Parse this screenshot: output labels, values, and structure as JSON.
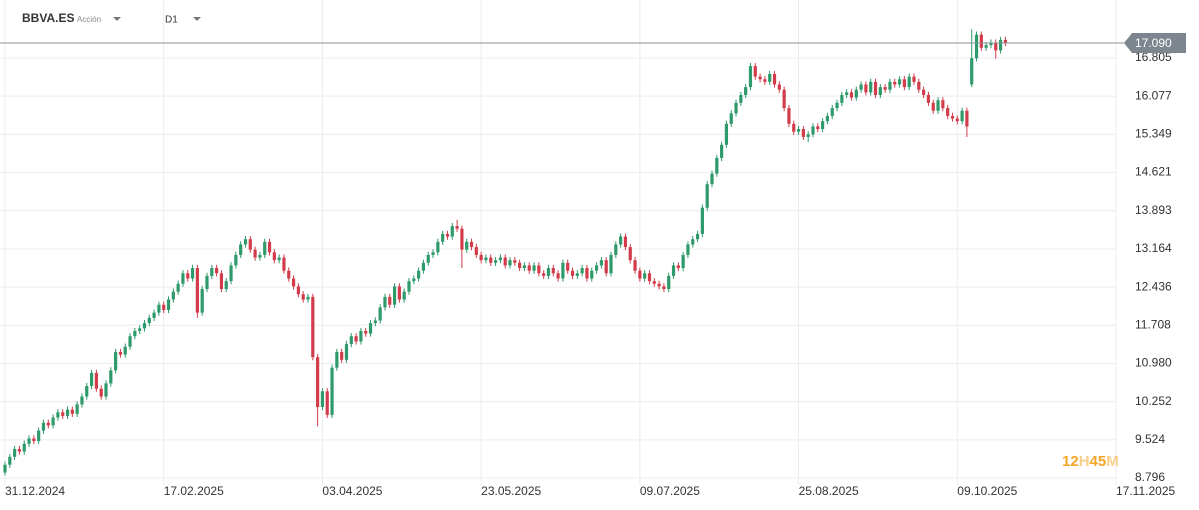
{
  "header": {
    "symbol": "BBVA.ES",
    "kind": "Acción",
    "timeframe": "D1"
  },
  "chart_data": {
    "type": "candlestick",
    "up_color": "#2e9a6a",
    "down_color": "#d23c4a",
    "ylim": [
      8.663,
      17.911
    ],
    "yticks": [
      16.805,
      16.077,
      15.349,
      14.621,
      13.893,
      13.164,
      12.436,
      11.708,
      {
        "value": 10.98,
        "label": "10.980"
      },
      10.252,
      9.524,
      8.796
    ],
    "xlim": [
      -1.04,
      231
    ],
    "xticks": [
      {
        "value": 0,
        "label": "31.12.2024"
      },
      {
        "value": 33,
        "label": "17.02.2025"
      },
      {
        "value": 66,
        "label": "03.04.2025"
      },
      {
        "value": 99,
        "label": "23.05.2025"
      },
      {
        "value": 132,
        "label": "09.07.2025"
      },
      {
        "value": 165,
        "label": "25.08.2025"
      },
      {
        "value": 198,
        "label": "09.10.2025"
      },
      {
        "value": 231,
        "label": "17.11.2025"
      }
    ],
    "grid": true,
    "current_price": 17.09,
    "current_price_label": "17.090",
    "watermark_parts": [
      "12",
      "H",
      "45",
      "M"
    ],
    "candles": [
      [
        8.9,
        9.11,
        8.84,
        9.05
      ],
      [
        9.05,
        9.26,
        8.99,
        9.2
      ],
      [
        9.2,
        9.41,
        9.14,
        9.35
      ],
      [
        9.35,
        9.41,
        9.24,
        9.3
      ],
      [
        9.3,
        9.51,
        9.24,
        9.45
      ],
      [
        9.45,
        9.61,
        9.39,
        9.55
      ],
      [
        9.55,
        9.61,
        9.44,
        9.5
      ],
      [
        9.5,
        9.76,
        9.44,
        9.7
      ],
      [
        9.7,
        9.91,
        9.64,
        9.85
      ],
      [
        9.85,
        9.91,
        9.74,
        9.8
      ],
      [
        9.8,
        10.01,
        9.74,
        9.95
      ],
      [
        9.95,
        10.11,
        9.89,
        10.05
      ],
      [
        10.05,
        10.11,
        9.92,
        9.98
      ],
      [
        9.98,
        10.16,
        9.92,
        10.1
      ],
      [
        10.1,
        10.16,
        9.96,
        10.02
      ],
      [
        10.02,
        10.26,
        9.96,
        10.2
      ],
      [
        10.2,
        10.41,
        10.14,
        10.35
      ],
      [
        10.35,
        10.61,
        10.29,
        10.55
      ],
      [
        10.55,
        10.86,
        10.49,
        10.8
      ],
      [
        10.8,
        10.86,
        10.44,
        10.5
      ],
      [
        10.5,
        10.56,
        10.29,
        10.35
      ],
      [
        10.35,
        10.66,
        10.29,
        10.6
      ],
      [
        10.6,
        10.91,
        10.54,
        10.85
      ],
      [
        10.85,
        11.26,
        10.79,
        11.2
      ],
      [
        11.2,
        11.26,
        11.09,
        11.15
      ],
      [
        11.15,
        11.36,
        11.09,
        11.3
      ],
      [
        11.3,
        11.56,
        11.24,
        11.5
      ],
      [
        11.5,
        11.66,
        11.44,
        11.6
      ],
      [
        11.6,
        11.71,
        11.54,
        11.65
      ],
      [
        11.65,
        11.81,
        11.59,
        11.75
      ],
      [
        11.75,
        11.91,
        11.69,
        11.85
      ],
      [
        11.85,
        12.01,
        11.79,
        11.95
      ],
      [
        11.95,
        12.16,
        11.89,
        12.1
      ],
      [
        12.1,
        12.16,
        11.94,
        12.0
      ],
      [
        12.0,
        12.26,
        11.94,
        12.2
      ],
      [
        12.2,
        12.41,
        12.14,
        12.35
      ],
      [
        12.35,
        12.56,
        12.29,
        12.5
      ],
      [
        12.5,
        12.76,
        12.44,
        12.7
      ],
      [
        12.7,
        12.76,
        12.54,
        12.6
      ],
      [
        12.6,
        12.86,
        12.54,
        12.8
      ],
      [
        12.8,
        12.86,
        11.85,
        11.95
      ],
      [
        11.95,
        12.46,
        11.89,
        12.4
      ],
      [
        12.4,
        12.71,
        12.34,
        12.65
      ],
      [
        12.65,
        12.86,
        12.59,
        12.8
      ],
      [
        12.8,
        12.86,
        12.64,
        12.7
      ],
      [
        12.7,
        12.76,
        12.34,
        12.4
      ],
      [
        12.4,
        12.61,
        12.34,
        12.55
      ],
      [
        12.55,
        12.91,
        12.49,
        12.85
      ],
      [
        12.85,
        13.11,
        12.79,
        13.05
      ],
      [
        13.05,
        13.31,
        12.99,
        13.25
      ],
      [
        13.25,
        13.41,
        13.19,
        13.35
      ],
      [
        13.35,
        13.41,
        13.09,
        13.15
      ],
      [
        13.15,
        13.21,
        12.94,
        13.0
      ],
      [
        13.0,
        13.11,
        12.94,
        13.05
      ],
      [
        13.05,
        13.36,
        12.99,
        13.3
      ],
      [
        13.3,
        13.36,
        13.04,
        13.1
      ],
      [
        13.1,
        13.16,
        12.89,
        12.95
      ],
      [
        12.95,
        13.06,
        12.89,
        13.0
      ],
      [
        13.0,
        13.06,
        12.69,
        12.75
      ],
      [
        12.75,
        12.81,
        12.54,
        12.6
      ],
      [
        12.6,
        12.66,
        12.39,
        12.45
      ],
      [
        12.45,
        12.51,
        12.24,
        12.3
      ],
      [
        12.3,
        12.36,
        12.14,
        12.2
      ],
      [
        12.2,
        12.31,
        12.14,
        12.25
      ],
      [
        12.25,
        12.31,
        11.04,
        11.1
      ],
      [
        11.1,
        11.16,
        9.78,
        10.15
      ],
      [
        10.15,
        10.51,
        10.09,
        10.45
      ],
      [
        10.45,
        10.51,
        9.94,
        10.0
      ],
      [
        10.0,
        10.96,
        9.94,
        10.9
      ],
      [
        10.9,
        11.26,
        10.84,
        11.2
      ],
      [
        11.2,
        11.26,
        10.99,
        11.05
      ],
      [
        11.05,
        11.41,
        10.99,
        11.35
      ],
      [
        11.35,
        11.56,
        11.29,
        11.5
      ],
      [
        11.5,
        11.56,
        11.34,
        11.4
      ],
      [
        11.4,
        11.66,
        11.34,
        11.6
      ],
      [
        11.6,
        11.66,
        11.49,
        11.55
      ],
      [
        11.55,
        11.81,
        11.49,
        11.75
      ],
      [
        11.75,
        11.86,
        11.69,
        11.8
      ],
      [
        11.8,
        12.11,
        11.74,
        12.05
      ],
      [
        12.05,
        12.31,
        11.99,
        12.25
      ],
      [
        12.25,
        12.31,
        12.04,
        12.1
      ],
      [
        12.1,
        12.51,
        12.04,
        12.45
      ],
      [
        12.45,
        12.51,
        12.14,
        12.2
      ],
      [
        12.2,
        12.41,
        12.14,
        12.35
      ],
      [
        12.35,
        12.61,
        12.29,
        12.55
      ],
      [
        12.55,
        12.66,
        12.49,
        12.6
      ],
      [
        12.6,
        12.81,
        12.54,
        12.75
      ],
      [
        12.75,
        12.96,
        12.69,
        12.9
      ],
      [
        12.9,
        13.11,
        12.84,
        13.05
      ],
      [
        13.05,
        13.16,
        12.99,
        13.1
      ],
      [
        13.1,
        13.36,
        13.04,
        13.3
      ],
      [
        13.3,
        13.51,
        13.24,
        13.45
      ],
      [
        13.45,
        13.51,
        13.34,
        13.4
      ],
      [
        13.4,
        13.66,
        13.34,
        13.6
      ],
      [
        13.6,
        13.72,
        13.49,
        13.55
      ],
      [
        13.55,
        13.61,
        12.8,
        13.15
      ],
      [
        13.15,
        13.36,
        13.09,
        13.3
      ],
      [
        13.3,
        13.36,
        13.14,
        13.2
      ],
      [
        13.2,
        13.26,
        12.99,
        13.05
      ],
      [
        13.05,
        13.11,
        12.89,
        12.95
      ],
      [
        12.95,
        13.06,
        12.89,
        13.0
      ],
      [
        13.0,
        13.06,
        12.84,
        12.9
      ],
      [
        12.9,
        13.01,
        12.84,
        12.95
      ],
      [
        12.95,
        13.06,
        12.89,
        13.0
      ],
      [
        13.0,
        13.06,
        12.79,
        12.85
      ],
      [
        12.85,
        13.01,
        12.79,
        12.95
      ],
      [
        12.95,
        13.01,
        12.84,
        12.9
      ],
      [
        12.9,
        12.96,
        12.74,
        12.8
      ],
      [
        12.8,
        12.91,
        12.74,
        12.85
      ],
      [
        12.85,
        12.91,
        12.69,
        12.75
      ],
      [
        12.75,
        12.91,
        12.69,
        12.85
      ],
      [
        12.85,
        12.91,
        12.64,
        12.7
      ],
      [
        12.7,
        12.76,
        12.59,
        12.65
      ],
      [
        12.65,
        12.86,
        12.59,
        12.8
      ],
      [
        12.8,
        12.86,
        12.64,
        12.7
      ],
      [
        12.7,
        12.76,
        12.54,
        12.6
      ],
      [
        12.6,
        12.96,
        12.54,
        12.9
      ],
      [
        12.9,
        12.96,
        12.69,
        12.75
      ],
      [
        12.75,
        12.81,
        12.59,
        12.65
      ],
      [
        12.65,
        12.76,
        12.59,
        12.7
      ],
      [
        12.7,
        12.86,
        12.64,
        12.8
      ],
      [
        12.8,
        12.86,
        12.54,
        12.6
      ],
      [
        12.6,
        12.81,
        12.54,
        12.75
      ],
      [
        12.75,
        12.91,
        12.69,
        12.85
      ],
      [
        12.85,
        13.01,
        12.79,
        12.95
      ],
      [
        12.95,
        13.01,
        12.64,
        12.7
      ],
      [
        12.7,
        13.11,
        12.64,
        13.05
      ],
      [
        13.05,
        13.31,
        12.99,
        13.25
      ],
      [
        13.25,
        13.46,
        13.19,
        13.4
      ],
      [
        13.4,
        13.46,
        13.14,
        13.2
      ],
      [
        13.2,
        13.26,
        12.89,
        12.95
      ],
      [
        12.95,
        13.01,
        12.69,
        12.75
      ],
      [
        12.75,
        12.81,
        12.54,
        12.6
      ],
      [
        12.6,
        12.76,
        12.54,
        12.7
      ],
      [
        12.7,
        12.76,
        12.49,
        12.55
      ],
      [
        12.55,
        12.61,
        12.44,
        12.5
      ],
      [
        12.5,
        12.56,
        12.39,
        12.45
      ],
      [
        12.45,
        12.51,
        12.34,
        12.4
      ],
      [
        12.4,
        12.71,
        12.34,
        12.65
      ],
      [
        12.65,
        12.91,
        12.59,
        12.85
      ],
      [
        12.85,
        12.91,
        12.74,
        12.8
      ],
      [
        12.8,
        13.11,
        12.74,
        13.05
      ],
      [
        13.05,
        13.31,
        12.99,
        13.25
      ],
      [
        13.25,
        13.41,
        13.19,
        13.35
      ],
      [
        13.35,
        13.51,
        13.29,
        13.45
      ],
      [
        13.45,
        14.01,
        13.39,
        13.95
      ],
      [
        13.95,
        14.46,
        13.89,
        14.4
      ],
      [
        14.4,
        14.66,
        14.34,
        14.6
      ],
      [
        14.6,
        14.96,
        14.54,
        14.9
      ],
      [
        14.9,
        15.21,
        14.84,
        15.15
      ],
      [
        15.15,
        15.61,
        15.09,
        15.55
      ],
      [
        15.55,
        15.81,
        15.49,
        15.75
      ],
      [
        15.75,
        16.01,
        15.69,
        15.95
      ],
      [
        15.95,
        16.16,
        15.89,
        16.1
      ],
      [
        16.1,
        16.31,
        16.04,
        16.25
      ],
      [
        16.25,
        16.71,
        16.19,
        16.65
      ],
      [
        16.65,
        16.71,
        16.39,
        16.45
      ],
      [
        16.45,
        16.51,
        16.34,
        16.4
      ],
      [
        16.4,
        16.46,
        16.29,
        16.35
      ],
      [
        16.35,
        16.56,
        16.29,
        16.5
      ],
      [
        16.5,
        16.56,
        16.24,
        16.3
      ],
      [
        16.3,
        16.36,
        16.14,
        16.2
      ],
      [
        16.2,
        16.26,
        15.79,
        15.85
      ],
      [
        15.85,
        15.91,
        15.49,
        15.55
      ],
      [
        15.55,
        15.61,
        15.34,
        15.4
      ],
      [
        15.4,
        15.51,
        15.34,
        15.45
      ],
      [
        15.45,
        15.51,
        15.24,
        15.3
      ],
      [
        15.3,
        15.41,
        15.2,
        15.35
      ],
      [
        15.35,
        15.56,
        15.29,
        15.5
      ],
      [
        15.5,
        15.56,
        15.39,
        15.45
      ],
      [
        15.45,
        15.66,
        15.39,
        15.6
      ],
      [
        15.6,
        15.76,
        15.54,
        15.7
      ],
      [
        15.7,
        15.91,
        15.64,
        15.85
      ],
      [
        15.85,
        16.01,
        15.79,
        15.95
      ],
      [
        15.95,
        16.16,
        15.89,
        16.1
      ],
      [
        16.1,
        16.21,
        16.04,
        16.15
      ],
      [
        16.15,
        16.21,
        15.99,
        16.05
      ],
      [
        16.05,
        16.26,
        15.99,
        16.2
      ],
      [
        16.2,
        16.36,
        16.14,
        16.3
      ],
      [
        16.3,
        16.36,
        16.09,
        16.15
      ],
      [
        16.15,
        16.41,
        16.09,
        16.35
      ],
      [
        16.35,
        16.41,
        16.04,
        16.1
      ],
      [
        16.1,
        16.31,
        16.04,
        16.25
      ],
      [
        16.25,
        16.31,
        16.14,
        16.2
      ],
      [
        16.2,
        16.41,
        16.14,
        16.35
      ],
      [
        16.35,
        16.41,
        16.24,
        16.3
      ],
      [
        16.3,
        16.46,
        16.24,
        16.4
      ],
      [
        16.4,
        16.46,
        16.19,
        16.25
      ],
      [
        16.25,
        16.51,
        16.19,
        16.45
      ],
      [
        16.45,
        16.51,
        16.29,
        16.35
      ],
      [
        16.35,
        16.41,
        16.14,
        16.2
      ],
      [
        16.2,
        16.26,
        16.04,
        16.1
      ],
      [
        16.1,
        16.16,
        15.89,
        15.95
      ],
      [
        15.95,
        16.01,
        15.74,
        15.8
      ],
      [
        15.8,
        16.06,
        15.74,
        16.0
      ],
      [
        16.0,
        16.06,
        15.79,
        15.85
      ],
      [
        15.85,
        15.91,
        15.64,
        15.7
      ],
      [
        15.7,
        15.76,
        15.59,
        15.65
      ],
      [
        15.65,
        15.71,
        15.54,
        15.6
      ],
      [
        15.6,
        15.86,
        15.54,
        15.8
      ],
      [
        15.8,
        15.86,
        15.3,
        15.5
      ],
      [
        16.3,
        17.35,
        16.25,
        16.8
      ],
      [
        16.8,
        17.31,
        16.74,
        17.25
      ],
      [
        17.25,
        17.31,
        16.94,
        17.0
      ],
      [
        17.0,
        17.11,
        16.94,
        17.05
      ],
      [
        17.05,
        17.16,
        16.99,
        17.1
      ],
      [
        17.1,
        17.16,
        16.79,
        16.95
      ],
      [
        16.95,
        17.21,
        16.89,
        17.15
      ],
      [
        17.15,
        17.21,
        17.03,
        17.09
      ]
    ]
  }
}
